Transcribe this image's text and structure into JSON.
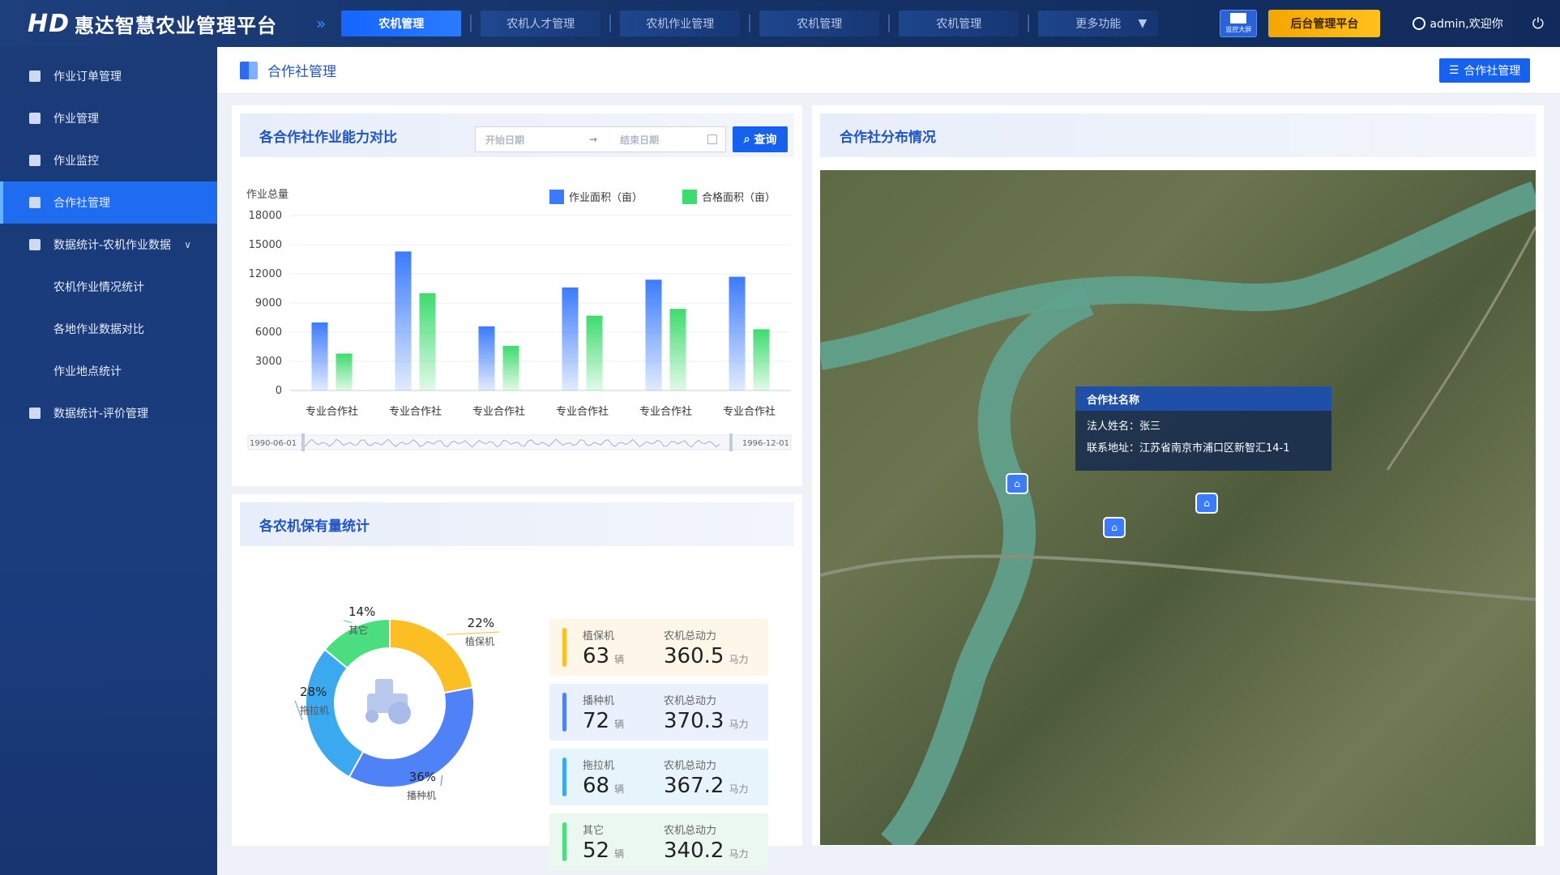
{
  "header": {
    "logo_mark": "HD",
    "app_title": "惠达智慧农业管理平台",
    "tabs": [
      {
        "label": "农机管理",
        "active": true
      },
      {
        "label": "农机人才管理",
        "active": false
      },
      {
        "label": "农机作业管理",
        "active": false
      },
      {
        "label": "农机管理",
        "active": false
      },
      {
        "label": "农机管理",
        "active": false
      }
    ],
    "more_label": "更多功能",
    "bigscreen_label": "监控大屏",
    "admin_platform_label": "后台管理平台",
    "user_label": "admin,欢迎你"
  },
  "sidebar": {
    "items": [
      {
        "label": "作业订单管理",
        "active": false,
        "sub": false
      },
      {
        "label": "作业管理",
        "active": false,
        "sub": false
      },
      {
        "label": "作业监控",
        "active": false,
        "sub": false
      },
      {
        "label": "合作社管理",
        "active": true,
        "sub": false
      },
      {
        "label": "数据统计-农机作业数据",
        "active": false,
        "sub": false,
        "expanded": true
      },
      {
        "label": "农机作业情况统计",
        "active": false,
        "sub": true
      },
      {
        "label": "各地作业数据对比",
        "active": false,
        "sub": true
      },
      {
        "label": "作业地点统计",
        "active": false,
        "sub": true
      },
      {
        "label": "数据统计-评价管理",
        "active": false,
        "sub": false
      }
    ]
  },
  "breadcrumb": {
    "title": "合作社管理",
    "button_label": "合作社管理"
  },
  "capability_card": {
    "title": "各合作社作业能力对比",
    "start_placeholder": "开始日期",
    "end_placeholder": "结束日期",
    "date_separator": "→",
    "query_label": "查询"
  },
  "chart_data": {
    "type": "bar",
    "ylabel": "作业总量",
    "ylim": [
      0,
      18000
    ],
    "yticks": [
      0,
      3000,
      6000,
      9000,
      12000,
      15000,
      18000
    ],
    "categories": [
      "专业合作社",
      "专业合作社",
      "专业合作社",
      "专业合作社",
      "专业合作社",
      "专业合作社"
    ],
    "series": [
      {
        "name": "作业面积（亩）",
        "color": "#3b7bff",
        "values": [
          7000,
          14300,
          6600,
          10600,
          11400,
          11700
        ]
      },
      {
        "name": "合格面积（亩）",
        "color": "#3ddc6e",
        "values": [
          3800,
          10000,
          4600,
          7700,
          8400,
          6300
        ]
      }
    ],
    "legend": "top-right",
    "range_start": "1990-06-01",
    "range_end": "1996-12-01"
  },
  "machine_card": {
    "title": "各农机保有量统计",
    "donut": [
      {
        "name": "植保机",
        "percent": 22,
        "label": "22%",
        "color": "#fbbf24"
      },
      {
        "name": "播种机",
        "percent": 36,
        "label": "36%",
        "color": "#4f82f6"
      },
      {
        "name": "拖拉机",
        "percent": 28,
        "label": "28%",
        "color": "#3aa9f0"
      },
      {
        "name": "其它",
        "percent": 14,
        "label": "14%",
        "color": "#4ade80"
      }
    ],
    "stats": [
      {
        "name": "植保机",
        "count": "63",
        "unit": "辆",
        "power_label": "农机总动力",
        "power": "360.5",
        "power_unit": "马力",
        "color": "#fbbf24",
        "bg": "#fdf6e9"
      },
      {
        "name": "播种机",
        "count": "72",
        "unit": "辆",
        "power_label": "农机总动力",
        "power": "370.3",
        "power_unit": "马力",
        "color": "#4f82f6",
        "bg": "#eaf0fc"
      },
      {
        "name": "拖拉机",
        "count": "68",
        "unit": "辆",
        "power_label": "农机总动力",
        "power": "367.2",
        "power_unit": "马力",
        "color": "#3aa9f0",
        "bg": "#e8f4fc"
      },
      {
        "name": "其它",
        "count": "52",
        "unit": "辆",
        "power_label": "农机总动力",
        "power": "340.2",
        "power_unit": "马力",
        "color": "#4ade80",
        "bg": "#eaf8ef"
      }
    ]
  },
  "map_card": {
    "title": "合作社分布情况",
    "tooltip": {
      "title": "合作社名称",
      "line1": "法人姓名：张三",
      "line2": "联系地址：江苏省南京市浦口区新智汇14-1"
    }
  }
}
